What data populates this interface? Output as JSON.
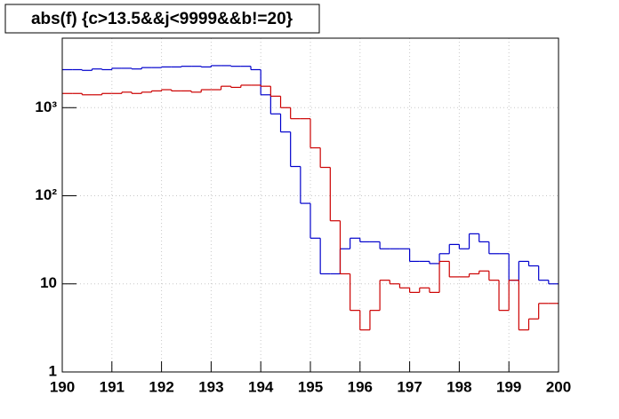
{
  "chart_data": {
    "type": "histogram",
    "title": "abs(f) {c>13.5&&j<9999&&b!=20}",
    "log_y": true,
    "grid": true,
    "bins": [
      190,
      190.2,
      190.4,
      190.6,
      190.8,
      191,
      191.2,
      191.4,
      191.6,
      191.8,
      192,
      192.2,
      192.4,
      192.6,
      192.8,
      193,
      193.2,
      193.4,
      193.6,
      193.8,
      194,
      194.2,
      194.4,
      194.6,
      194.8,
      195,
      195.2,
      195.4,
      195.6,
      195.8,
      196,
      196.2,
      196.4,
      196.6,
      196.8,
      197,
      197.2,
      197.4,
      197.6,
      197.8,
      198,
      198.2,
      198.4,
      198.6,
      198.8,
      199,
      199.2,
      199.4,
      199.6,
      199.8,
      200
    ],
    "series": [
      {
        "color": "#0000cc",
        "values": [
          2700,
          2700,
          2650,
          2750,
          2700,
          2800,
          2800,
          2750,
          2850,
          2850,
          2900,
          2900,
          2950,
          2950,
          2900,
          3000,
          3000,
          2950,
          2950,
          2700,
          1400,
          850,
          530,
          215,
          82,
          33,
          13,
          13,
          25,
          33,
          30,
          30,
          25,
          25,
          25,
          18,
          18,
          17,
          22,
          28,
          25,
          37,
          30,
          22,
          22,
          11,
          18,
          16,
          11,
          10
        ]
      },
      {
        "color": "#cc0000",
        "values": [
          1450,
          1450,
          1400,
          1400,
          1450,
          1450,
          1500,
          1450,
          1500,
          1550,
          1600,
          1550,
          1550,
          1500,
          1600,
          1600,
          1750,
          1700,
          1800,
          1800,
          1750,
          1350,
          1000,
          750,
          750,
          350,
          210,
          52,
          13,
          5,
          3,
          5,
          11,
          10,
          9,
          8,
          9,
          8,
          18,
          12,
          12,
          13,
          14,
          11,
          5,
          11,
          3,
          4,
          6,
          6
        ]
      }
    ],
    "xlim": [
      190,
      200
    ],
    "xticks": [
      190,
      191,
      192,
      193,
      194,
      195,
      196,
      197,
      198,
      199,
      200
    ],
    "ylim": [
      1,
      6150
    ],
    "yticks": [
      1,
      10,
      {
        "value": 100,
        "label": "10²"
      },
      {
        "value": 1000,
        "label": "10³"
      }
    ]
  }
}
